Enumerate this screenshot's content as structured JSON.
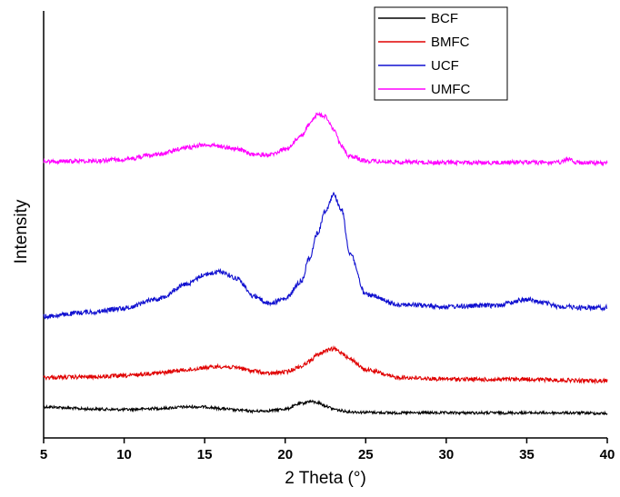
{
  "chart_data": {
    "type": "line",
    "xlabel": "2 Theta (°)",
    "ylabel": "Intensity",
    "xlim": [
      5,
      40
    ],
    "x_ticks": [
      "5",
      "10",
      "15",
      "20",
      "25",
      "30",
      "35",
      "40"
    ],
    "y_tick_labels_shown": false,
    "grid": false,
    "legend_position": "top-right",
    "x": [
      5,
      8,
      10,
      12,
      14,
      15,
      16,
      17,
      18,
      19,
      20,
      21,
      21.5,
      22,
      22.5,
      23,
      23.5,
      24,
      25,
      27,
      30,
      33,
      35,
      36,
      37,
      37.7,
      38,
      40
    ],
    "series": [
      {
        "name": "BCF",
        "color": "#000000",
        "values": [
          0.12,
          0.08,
          0.07,
          0.09,
          0.12,
          0.12,
          0.09,
          0.06,
          0.04,
          0.05,
          0.08,
          0.18,
          0.22,
          0.2,
          0.14,
          0.08,
          0.05,
          0.03,
          0.02,
          0.01,
          0.01,
          0.01,
          0.01,
          0.01,
          0.01,
          0.01,
          0.01,
          0.0
        ]
      },
      {
        "name": "BMFC",
        "color": "#e00000",
        "values": [
          0.66,
          0.67,
          0.69,
          0.74,
          0.8,
          0.84,
          0.86,
          0.84,
          0.78,
          0.73,
          0.76,
          0.86,
          0.96,
          1.07,
          1.15,
          1.18,
          1.12,
          1.0,
          0.8,
          0.66,
          0.63,
          0.62,
          0.63,
          0.62,
          0.61,
          0.61,
          0.6,
          0.6
        ]
      },
      {
        "name": "UCF",
        "color": "#1010d0",
        "values": [
          1.78,
          1.86,
          1.93,
          2.1,
          2.38,
          2.55,
          2.6,
          2.48,
          2.16,
          2.02,
          2.1,
          2.42,
          2.85,
          3.3,
          3.72,
          4.02,
          3.74,
          2.95,
          2.18,
          2.0,
          1.96,
          1.98,
          2.09,
          2.03,
          1.96,
          1.96,
          1.94,
          1.94
        ]
      },
      {
        "name": "UMFC",
        "color": "#ff00ff",
        "values": [
          4.62,
          4.63,
          4.66,
          4.75,
          4.88,
          4.93,
          4.9,
          4.85,
          4.75,
          4.74,
          4.84,
          5.08,
          5.3,
          5.48,
          5.45,
          5.2,
          4.9,
          4.72,
          4.63,
          4.61,
          4.6,
          4.6,
          4.61,
          4.6,
          4.6,
          4.67,
          4.6,
          4.59
        ]
      }
    ]
  }
}
